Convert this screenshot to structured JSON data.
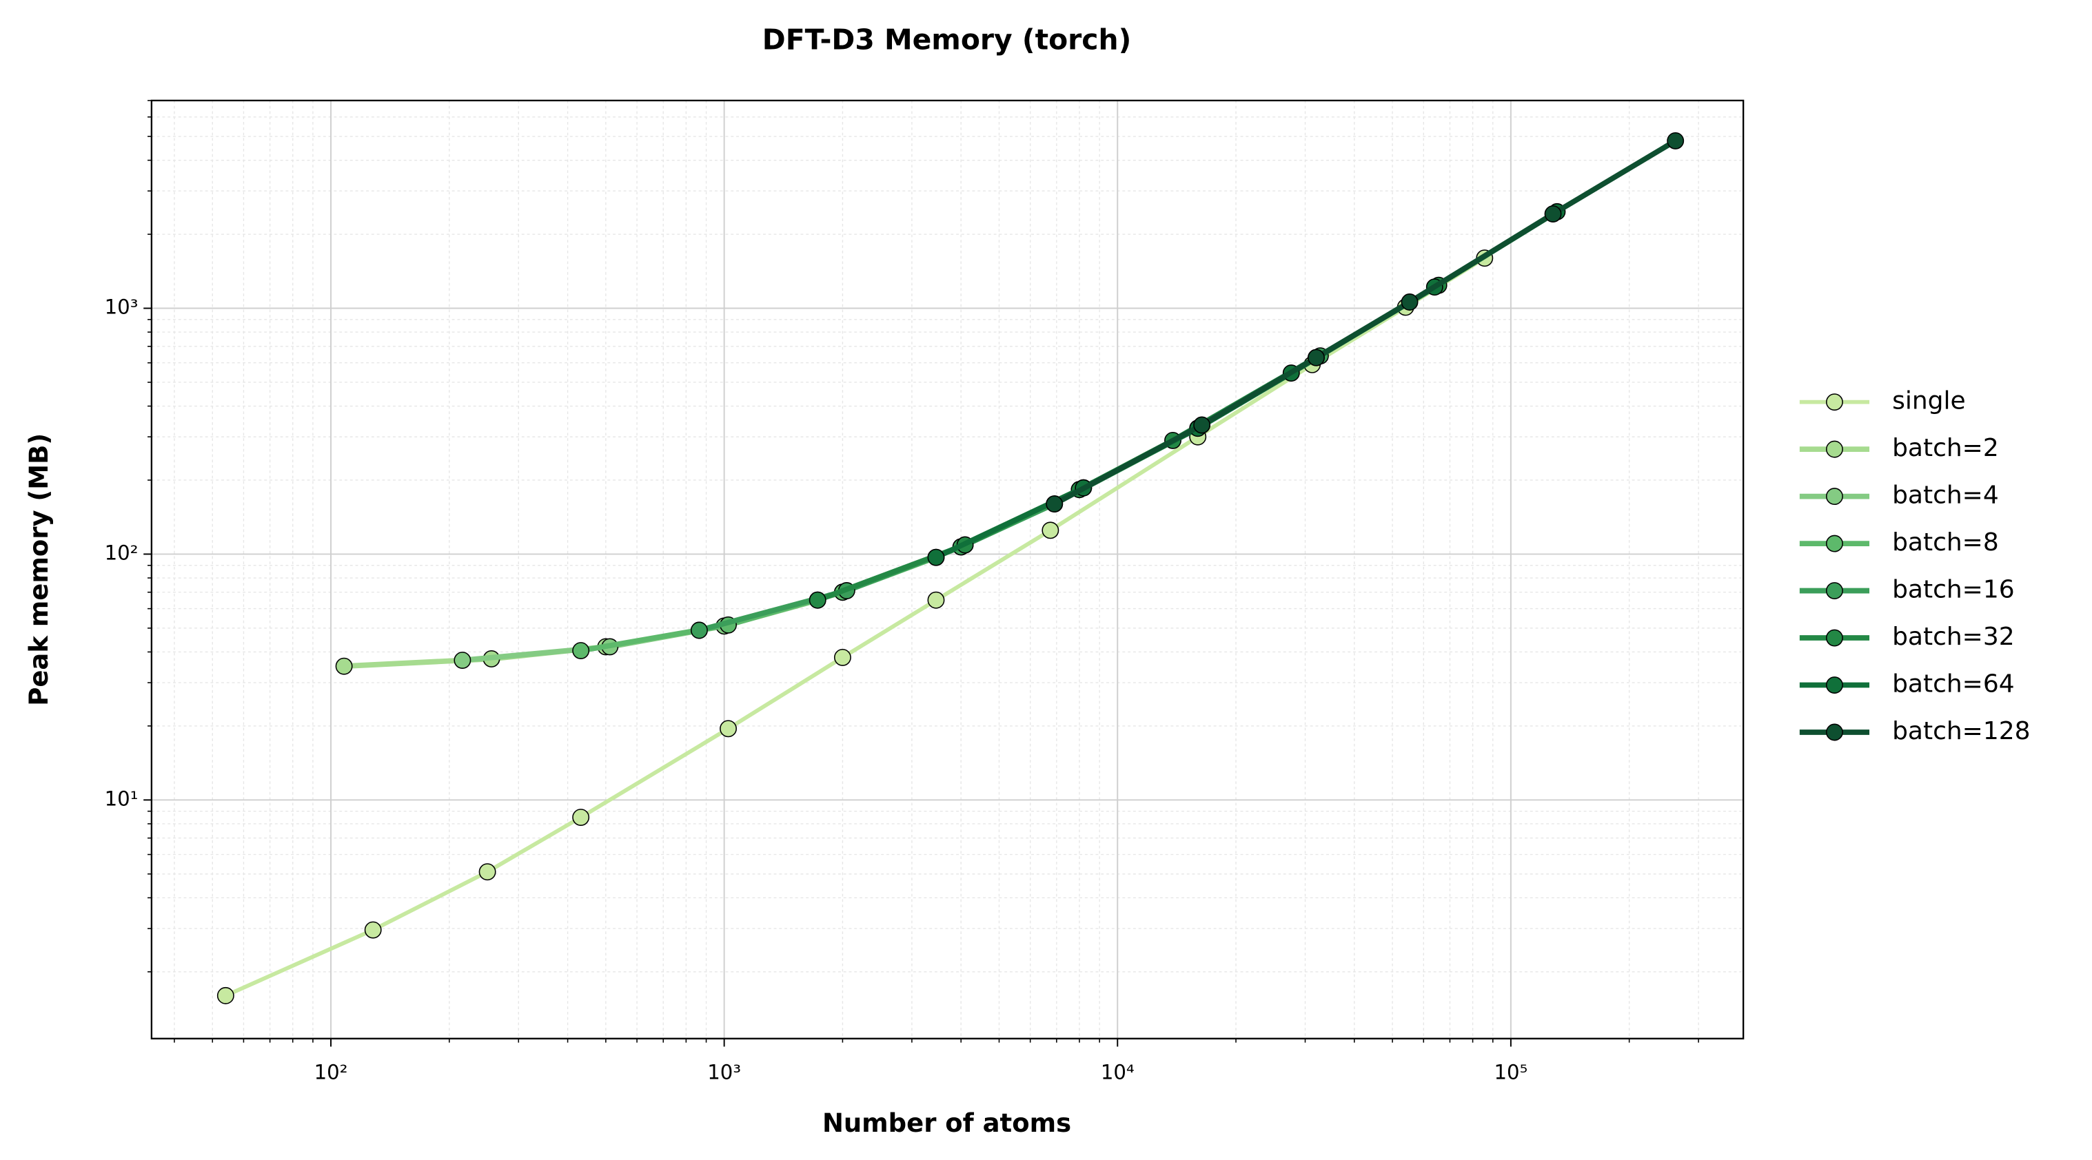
{
  "chart_data": {
    "type": "line",
    "title": "DFT-D3 Memory (torch)",
    "x_label": "Number of atoms",
    "y_label": "Peak memory (MB)",
    "x_scale": "log",
    "y_scale": "log",
    "xlim": [
      35,
      390000
    ],
    "ylim": [
      1.07,
      7000
    ],
    "xticks": [
      {
        "value": 100,
        "label": "10²"
      },
      {
        "value": 1000,
        "label": "10³"
      },
      {
        "value": 10000,
        "label": "10⁴"
      },
      {
        "value": 100000,
        "label": "10⁵"
      }
    ],
    "yticks": [
      {
        "value": 10,
        "label": "10¹"
      },
      {
        "value": 100,
        "label": "10²"
      },
      {
        "value": 1000,
        "label": "10³"
      }
    ],
    "grid": true,
    "minor_grid": true,
    "legend": "outside-right",
    "series": [
      {
        "name": "single",
        "color": "#c7e9a0",
        "x": [
          54,
          128,
          250,
          432,
          1024,
          2000,
          3456,
          6750,
          16000,
          31250,
          54000,
          85750
        ],
        "values": [
          1.6,
          2.96,
          5.1,
          8.5,
          19.5,
          38,
          65,
          125,
          300,
          590,
          1010,
          1600
        ]
      },
      {
        "name": "batch=2",
        "color": "#a6db8f",
        "x": [
          108,
          256,
          500,
          864,
          2000,
          4096
        ],
        "values": [
          35,
          37.5,
          42,
          49,
          70,
          109
        ]
      },
      {
        "name": "batch=4",
        "color": "#84cb83",
        "x": [
          216,
          512,
          1000,
          1728,
          4000,
          8192
        ],
        "values": [
          37,
          42,
          51,
          65,
          107,
          186
        ]
      },
      {
        "name": "batch=8",
        "color": "#5db96b",
        "x": [
          432,
          1024,
          2000,
          3456,
          8000,
          16384
        ],
        "values": [
          40.5,
          51.5,
          70,
          97,
          183,
          335
        ]
      },
      {
        "name": "batch=16",
        "color": "#3b9e5a",
        "x": [
          864,
          2048,
          4000,
          6912,
          16000,
          32768
        ],
        "values": [
          49,
          71,
          107,
          160,
          325,
          640
        ]
      },
      {
        "name": "batch=32",
        "color": "#238845",
        "x": [
          1728,
          4096,
          8000,
          13824,
          32000,
          65536
        ],
        "values": [
          65,
          109,
          183,
          290,
          630,
          1240
        ]
      },
      {
        "name": "batch=64",
        "color": "#10703a",
        "x": [
          3456,
          8192,
          16000,
          27648,
          64000,
          131072
        ],
        "values": [
          97,
          186,
          325,
          545,
          1220,
          2470
        ]
      },
      {
        "name": "batch=128",
        "color": "#0e4f30",
        "x": [
          6912,
          16384,
          32000,
          55296,
          128000,
          262144
        ],
        "values": [
          160,
          335,
          630,
          1060,
          2420,
          4800
        ]
      }
    ]
  }
}
